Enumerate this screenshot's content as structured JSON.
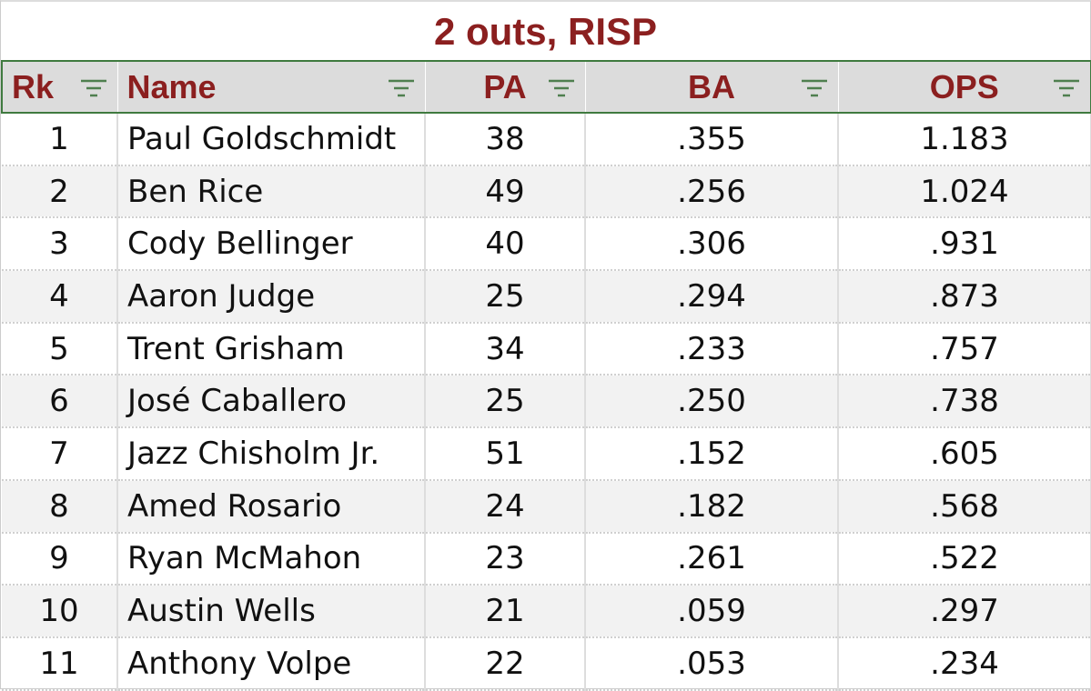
{
  "title": "2 outs, RISP",
  "table": {
    "columns": [
      "Rk",
      "Name",
      "PA",
      "BA",
      "OPS"
    ],
    "rows": [
      [
        "1",
        "Paul Goldschmidt",
        "38",
        ".355",
        "1.183"
      ],
      [
        "2",
        "Ben Rice",
        "49",
        ".256",
        "1.024"
      ],
      [
        "3",
        "Cody Bellinger",
        "40",
        ".306",
        ".931"
      ],
      [
        "4",
        "Aaron Judge",
        "25",
        ".294",
        ".873"
      ],
      [
        "5",
        "Trent Grisham",
        "34",
        ".233",
        ".757"
      ],
      [
        "6",
        "José Caballero",
        "25",
        ".250",
        ".738"
      ],
      [
        "7",
        "Jazz Chisholm Jr.",
        "51",
        ".152",
        ".605"
      ],
      [
        "8",
        "Amed Rosario",
        "24",
        ".182",
        ".568"
      ],
      [
        "9",
        "Ryan McMahon",
        "23",
        ".261",
        ".522"
      ],
      [
        "10",
        "Austin Wells",
        "21",
        ".059",
        ".297"
      ],
      [
        "11",
        "Anthony Volpe",
        "22",
        ".053",
        ".234"
      ]
    ]
  }
}
